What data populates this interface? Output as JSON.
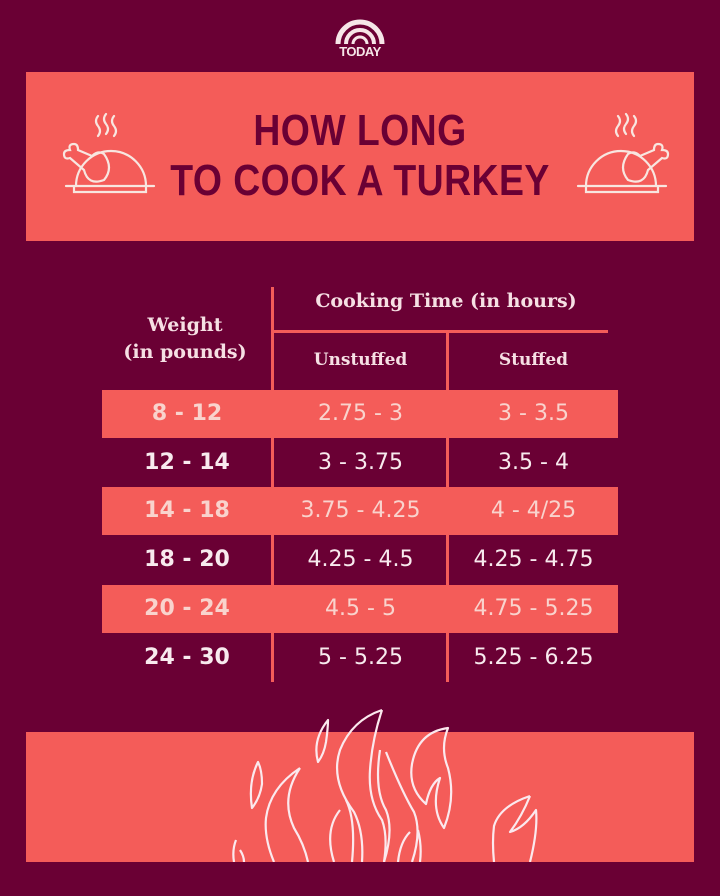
{
  "logo": {
    "text": "TODAY"
  },
  "title": {
    "line1": "HOW LONG",
    "line2": "TO COOK A TURKEY"
  },
  "table": {
    "weight_header": {
      "line1": "Weight",
      "line2": "(in pounds)"
    },
    "time_header": "Cooking Time (in hours)",
    "sub_headers": [
      "Unstuffed",
      "Stuffed"
    ],
    "rows": [
      [
        "8 - 12",
        "2.75 - 3",
        "3 - 3.5"
      ],
      [
        "12 - 14",
        "3 - 3.75",
        "3.5 - 4"
      ],
      [
        "14 - 18",
        "3.75 - 4.25",
        "4 - 4/25"
      ],
      [
        "18 - 20",
        "4.25 - 4.5",
        "4.25 - 4.75"
      ],
      [
        "20 - 24",
        "4.5 - 5",
        "4.75 - 5.25"
      ],
      [
        "24 - 30",
        "5 - 5.25",
        "5.25 - 6.25"
      ]
    ]
  },
  "colors": {
    "background": "#6a0034",
    "accent": "#f45c59",
    "text_light": "#f8eaee"
  },
  "icons": [
    "today-rainbow-logo",
    "roast-turkey-icon",
    "flames-illustration"
  ]
}
